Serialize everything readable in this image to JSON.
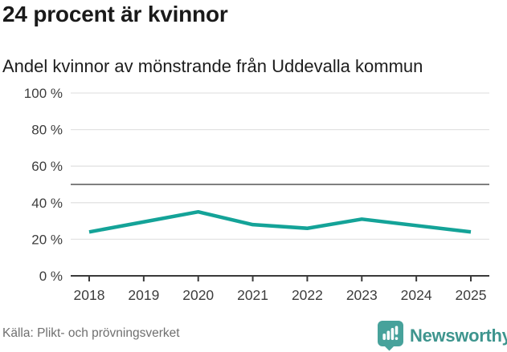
{
  "header": {
    "title": "24 procent är kvinnor",
    "subtitle": "Andel kvinnor av mönstrande från Uddevalla kommun"
  },
  "chart_data": {
    "type": "line",
    "title": "24 procent är kvinnor",
    "subtitle": "Andel kvinnor av mönstrande från Uddevalla kommun",
    "categories": [
      "2018",
      "2019",
      "2020",
      "2021",
      "2022",
      "2023",
      "2024",
      "2025"
    ],
    "series": [
      {
        "name": "Andel kvinnor av mönstrande",
        "values": [
          24,
          29.5,
          35,
          28,
          26,
          31,
          27.5,
          24
        ]
      }
    ],
    "unit": "%",
    "ylim": [
      0,
      100
    ],
    "yticks": [
      0,
      20,
      40,
      60,
      80,
      100
    ],
    "ytick_labels": [
      "0 %",
      "20 %",
      "40 %",
      "60 %",
      "80 %",
      "100 %"
    ],
    "reference_line": 50,
    "grid": true,
    "legend": "none"
  },
  "footer": {
    "source": "Källa: Plikt- och prövningsverket",
    "brand": "Newsworthy",
    "brand_icon": "newsworthy-bars-speech-bubble-icon"
  },
  "colors": {
    "line": "#14a398",
    "gridline": "#e3e3e3",
    "reference_line": "#7f7f7f",
    "axis": "#3a3a3a",
    "axis_text": "#3d3d3d",
    "title_text": "#1a1a1a",
    "source_text": "#6f6f6f",
    "brand_icon": "#47a29b",
    "brand_text": "#3e958e"
  }
}
